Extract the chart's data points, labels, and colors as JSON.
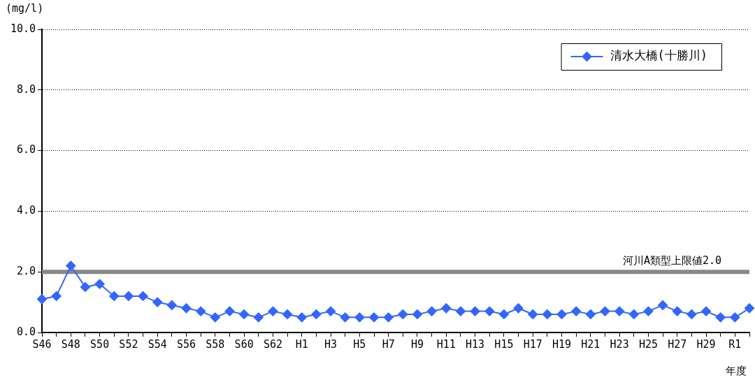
{
  "chart_data": {
    "type": "line",
    "ylabel": "(mg/l)",
    "xlabel": "年度",
    "categories": [
      "S46",
      null,
      "S48",
      null,
      "S50",
      null,
      "S52",
      null,
      "S54",
      null,
      "S56",
      null,
      "S58",
      null,
      "S60",
      null,
      "S62",
      null,
      "H1",
      null,
      "H3",
      null,
      "H5",
      null,
      "H7",
      null,
      "H9",
      null,
      "H11",
      null,
      "H13",
      null,
      "H15",
      null,
      "H17",
      null,
      "H19",
      null,
      "H21",
      null,
      "H23",
      null,
      "H25",
      null,
      "H27",
      null,
      "H29",
      null,
      "R1",
      null
    ],
    "series": [
      {
        "name": "清水大橋(十勝川)",
        "color": "#3366ff",
        "values": [
          1.1,
          1.2,
          2.2,
          1.5,
          1.6,
          1.2,
          1.2,
          1.2,
          1.0,
          0.9,
          0.8,
          0.7,
          0.5,
          0.7,
          0.6,
          0.5,
          0.7,
          0.6,
          0.5,
          0.6,
          0.7,
          0.5,
          0.5,
          0.5,
          0.5,
          0.6,
          0.6,
          0.7,
          0.8,
          0.7,
          0.7,
          0.7,
          0.6,
          0.8,
          0.6,
          0.6,
          0.6,
          0.7,
          0.6,
          0.7,
          0.7,
          0.6,
          0.7,
          0.9,
          0.7,
          0.6,
          0.7,
          0.5,
          0.5,
          0.8
        ]
      }
    ],
    "ylim": [
      0,
      10
    ],
    "yticks": [
      {
        "value": 0,
        "label": "0.0"
      },
      {
        "value": 2,
        "label": "2.0"
      },
      {
        "value": 4,
        "label": "4.0"
      },
      {
        "value": 6,
        "label": "6.0"
      },
      {
        "value": 8,
        "label": "8.0"
      },
      {
        "value": 10,
        "label": "10.0"
      }
    ],
    "ref_lines": [
      {
        "axis": "y",
        "value": 2,
        "label": "河川A類型上限値2.0",
        "color": "#888888"
      }
    ],
    "grid": "y",
    "legend": "top right",
    "marker": "diamond",
    "line_style": "solid"
  }
}
